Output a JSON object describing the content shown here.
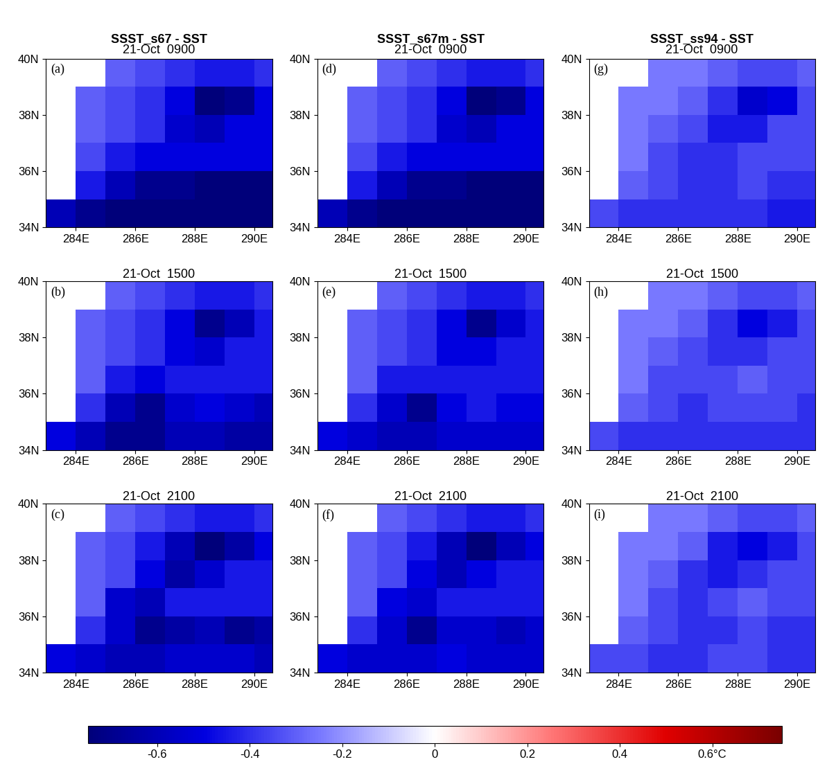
{
  "colorbar": {
    "range": [
      -0.75,
      0.75
    ],
    "ticks": [
      -0.6,
      -0.4,
      -0.2,
      0,
      0.2,
      0.4,
      {
        "value": 0.6,
        "label": "0.6°C"
      }
    ]
  },
  "chart_data": [
    {
      "type": "heatmap",
      "title": "SSST_s67 - SST",
      "subtitle": "21-Oct  0900",
      "panel": "(a)",
      "x": [
        283.5,
        284.5,
        285.5,
        286.5,
        287.5,
        288.5,
        289.5,
        290.5
      ],
      "y": [
        34.5,
        35.5,
        36.5,
        37.5,
        38.5,
        39.5
      ],
      "xlim": [
        283,
        290.6
      ],
      "ylim": [
        34,
        40
      ],
      "xticks": [
        {
          "value": 284,
          "label": "284E"
        },
        {
          "value": 286,
          "label": "286E"
        },
        {
          "value": 288,
          "label": "288E"
        },
        {
          "value": 290,
          "label": "290E"
        }
      ],
      "yticks": [
        {
          "value": 34,
          "label": "34N"
        },
        {
          "value": 36,
          "label": "36N"
        },
        {
          "value": 38,
          "label": "38N"
        },
        {
          "value": 40,
          "label": "40N"
        }
      ],
      "cells": [
        [
          -0.6,
          -0.7,
          -0.75,
          -0.75,
          -0.75,
          -0.75,
          -0.75,
          -0.75
        ],
        [
          null,
          -0.45,
          -0.6,
          -0.7,
          -0.7,
          -0.75,
          -0.75,
          -0.75
        ],
        [
          null,
          -0.35,
          -0.45,
          -0.5,
          -0.5,
          -0.5,
          -0.5,
          -0.5
        ],
        [
          null,
          -0.3,
          -0.35,
          -0.4,
          -0.55,
          -0.6,
          -0.5,
          -0.5
        ],
        [
          null,
          -0.3,
          -0.35,
          -0.4,
          -0.5,
          -0.75,
          -0.7,
          -0.5
        ],
        [
          null,
          null,
          -0.3,
          -0.35,
          -0.4,
          -0.45,
          -0.45,
          -0.4
        ]
      ]
    },
    {
      "type": "heatmap",
      "subtitle": "21-Oct  1500",
      "panel": "(b)",
      "x": [
        283.5,
        284.5,
        285.5,
        286.5,
        287.5,
        288.5,
        289.5,
        290.5
      ],
      "y": [
        34.5,
        35.5,
        36.5,
        37.5,
        38.5,
        39.5
      ],
      "xlim": [
        283,
        290.6
      ],
      "ylim": [
        34,
        40
      ],
      "xticks": [
        {
          "value": 284,
          "label": "284E"
        },
        {
          "value": 286,
          "label": "286E"
        },
        {
          "value": 288,
          "label": "288E"
        },
        {
          "value": 290,
          "label": "290E"
        }
      ],
      "yticks": [
        {
          "value": 34,
          "label": "34N"
        },
        {
          "value": 36,
          "label": "36N"
        },
        {
          "value": 38,
          "label": "38N"
        },
        {
          "value": 40,
          "label": "40N"
        }
      ],
      "cells": [
        [
          -0.5,
          -0.6,
          -0.7,
          -0.7,
          -0.6,
          -0.6,
          -0.65,
          -0.65
        ],
        [
          null,
          -0.4,
          -0.6,
          -0.7,
          -0.55,
          -0.5,
          -0.55,
          -0.6
        ],
        [
          null,
          -0.3,
          -0.45,
          -0.5,
          -0.45,
          -0.45,
          -0.45,
          -0.45
        ],
        [
          null,
          -0.3,
          -0.35,
          -0.4,
          -0.5,
          -0.55,
          -0.45,
          -0.45
        ],
        [
          null,
          -0.3,
          -0.35,
          -0.4,
          -0.5,
          -0.7,
          -0.6,
          -0.45
        ],
        [
          null,
          null,
          -0.3,
          -0.35,
          -0.4,
          -0.45,
          -0.45,
          -0.4
        ]
      ]
    },
    {
      "type": "heatmap",
      "subtitle": "21-Oct  2100",
      "panel": "(c)",
      "x": [
        283.5,
        284.5,
        285.5,
        286.5,
        287.5,
        288.5,
        289.5,
        290.5
      ],
      "y": [
        34.5,
        35.5,
        36.5,
        37.5,
        38.5,
        39.5
      ],
      "xlim": [
        283,
        290.6
      ],
      "ylim": [
        34,
        40
      ],
      "xticks": [
        {
          "value": 284,
          "label": "284E"
        },
        {
          "value": 286,
          "label": "286E"
        },
        {
          "value": 288,
          "label": "288E"
        },
        {
          "value": 290,
          "label": "290E"
        }
      ],
      "yticks": [
        {
          "value": 34,
          "label": "34N"
        },
        {
          "value": 36,
          "label": "36N"
        },
        {
          "value": 38,
          "label": "38N"
        },
        {
          "value": 40,
          "label": "40N"
        }
      ],
      "cells": [
        [
          -0.5,
          -0.55,
          -0.6,
          -0.6,
          -0.55,
          -0.55,
          -0.55,
          -0.6
        ],
        [
          null,
          -0.4,
          -0.55,
          -0.7,
          -0.65,
          -0.6,
          -0.7,
          -0.65
        ],
        [
          null,
          -0.3,
          -0.55,
          -0.6,
          -0.45,
          -0.45,
          -0.45,
          -0.45
        ],
        [
          null,
          -0.3,
          -0.35,
          -0.5,
          -0.65,
          -0.55,
          -0.45,
          -0.45
        ],
        [
          null,
          -0.3,
          -0.35,
          -0.45,
          -0.6,
          -0.75,
          -0.65,
          -0.5
        ],
        [
          null,
          null,
          -0.3,
          -0.35,
          -0.4,
          -0.45,
          -0.45,
          -0.4
        ]
      ]
    },
    {
      "type": "heatmap",
      "title": "SSST_s67m - SST",
      "subtitle": "21-Oct  0900",
      "panel": "(d)",
      "x": [
        283.5,
        284.5,
        285.5,
        286.5,
        287.5,
        288.5,
        289.5,
        290.5
      ],
      "y": [
        34.5,
        35.5,
        36.5,
        37.5,
        38.5,
        39.5
      ],
      "xlim": [
        283,
        290.6
      ],
      "ylim": [
        34,
        40
      ],
      "xticks": [
        {
          "value": 284,
          "label": "284E"
        },
        {
          "value": 286,
          "label": "286E"
        },
        {
          "value": 288,
          "label": "288E"
        },
        {
          "value": 290,
          "label": "290E"
        }
      ],
      "yticks": [
        {
          "value": 34,
          "label": "34N"
        },
        {
          "value": 36,
          "label": "36N"
        },
        {
          "value": 38,
          "label": "38N"
        },
        {
          "value": 40,
          "label": "40N"
        }
      ],
      "cells": [
        [
          -0.6,
          -0.7,
          -0.75,
          -0.75,
          -0.75,
          -0.75,
          -0.75,
          -0.75
        ],
        [
          null,
          -0.45,
          -0.6,
          -0.7,
          -0.7,
          -0.75,
          -0.75,
          -0.75
        ],
        [
          null,
          -0.35,
          -0.45,
          -0.5,
          -0.5,
          -0.5,
          -0.5,
          -0.5
        ],
        [
          null,
          -0.3,
          -0.35,
          -0.4,
          -0.55,
          -0.6,
          -0.5,
          -0.5
        ],
        [
          null,
          -0.3,
          -0.35,
          -0.4,
          -0.5,
          -0.75,
          -0.7,
          -0.5
        ],
        [
          null,
          null,
          -0.3,
          -0.35,
          -0.4,
          -0.45,
          -0.45,
          -0.4
        ]
      ]
    },
    {
      "type": "heatmap",
      "subtitle": "21-Oct  1500",
      "panel": "(e)",
      "x": [
        283.5,
        284.5,
        285.5,
        286.5,
        287.5,
        288.5,
        289.5,
        290.5
      ],
      "y": [
        34.5,
        35.5,
        36.5,
        37.5,
        38.5,
        39.5
      ],
      "xlim": [
        283,
        290.6
      ],
      "ylim": [
        34,
        40
      ],
      "xticks": [
        {
          "value": 284,
          "label": "284E"
        },
        {
          "value": 286,
          "label": "286E"
        },
        {
          "value": 288,
          "label": "288E"
        },
        {
          "value": 290,
          "label": "290E"
        }
      ],
      "yticks": [
        {
          "value": 34,
          "label": "34N"
        },
        {
          "value": 36,
          "label": "36N"
        },
        {
          "value": 38,
          "label": "38N"
        },
        {
          "value": 40,
          "label": "40N"
        }
      ],
      "cells": [
        [
          -0.5,
          -0.55,
          -0.6,
          -0.6,
          -0.55,
          -0.55,
          -0.55,
          -0.55
        ],
        [
          null,
          -0.4,
          -0.55,
          -0.7,
          -0.5,
          -0.45,
          -0.5,
          -0.5
        ],
        [
          null,
          -0.3,
          -0.45,
          -0.45,
          -0.45,
          -0.45,
          -0.45,
          -0.45
        ],
        [
          null,
          -0.3,
          -0.35,
          -0.4,
          -0.5,
          -0.5,
          -0.45,
          -0.45
        ],
        [
          null,
          -0.3,
          -0.35,
          -0.4,
          -0.5,
          -0.7,
          -0.55,
          -0.45
        ],
        [
          null,
          null,
          -0.3,
          -0.35,
          -0.4,
          -0.45,
          -0.45,
          -0.4
        ]
      ]
    },
    {
      "type": "heatmap",
      "subtitle": "21-Oct  2100",
      "panel": "(f)",
      "x": [
        283.5,
        284.5,
        285.5,
        286.5,
        287.5,
        288.5,
        289.5,
        290.5
      ],
      "y": [
        34.5,
        35.5,
        36.5,
        37.5,
        38.5,
        39.5
      ],
      "xlim": [
        283,
        290.6
      ],
      "ylim": [
        34,
        40
      ],
      "xticks": [
        {
          "value": 284,
          "label": "284E"
        },
        {
          "value": 286,
          "label": "286E"
        },
        {
          "value": 288,
          "label": "288E"
        },
        {
          "value": 290,
          "label": "290E"
        }
      ],
      "yticks": [
        {
          "value": 34,
          "label": "34N"
        },
        {
          "value": 36,
          "label": "36N"
        },
        {
          "value": 38,
          "label": "38N"
        },
        {
          "value": 40,
          "label": "40N"
        }
      ],
      "cells": [
        [
          -0.5,
          -0.55,
          -0.55,
          -0.55,
          -0.5,
          -0.55,
          -0.55,
          -0.55
        ],
        [
          null,
          -0.4,
          -0.55,
          -0.7,
          -0.55,
          -0.55,
          -0.6,
          -0.55
        ],
        [
          null,
          -0.3,
          -0.5,
          -0.55,
          -0.45,
          -0.45,
          -0.45,
          -0.45
        ],
        [
          null,
          -0.3,
          -0.35,
          -0.5,
          -0.6,
          -0.5,
          -0.45,
          -0.45
        ],
        [
          null,
          -0.3,
          -0.35,
          -0.45,
          -0.6,
          -0.75,
          -0.6,
          -0.5
        ],
        [
          null,
          null,
          -0.3,
          -0.35,
          -0.4,
          -0.45,
          -0.45,
          -0.4
        ]
      ]
    },
    {
      "type": "heatmap",
      "title": "SSST_ss94 - SST",
      "subtitle": "21-Oct  0900",
      "panel": "(g)",
      "x": [
        283.5,
        284.5,
        285.5,
        286.5,
        287.5,
        288.5,
        289.5,
        290.5
      ],
      "y": [
        34.5,
        35.5,
        36.5,
        37.5,
        38.5,
        39.5
      ],
      "xlim": [
        283,
        290.6
      ],
      "ylim": [
        34,
        40
      ],
      "xticks": [
        {
          "value": 284,
          "label": "284E"
        },
        {
          "value": 286,
          "label": "286E"
        },
        {
          "value": 288,
          "label": "288E"
        },
        {
          "value": 290,
          "label": "290E"
        }
      ],
      "yticks": [
        {
          "value": 34,
          "label": "34N"
        },
        {
          "value": 36,
          "label": "36N"
        },
        {
          "value": 38,
          "label": "38N"
        },
        {
          "value": 40,
          "label": "40N"
        }
      ],
      "cells": [
        [
          -0.35,
          -0.4,
          -0.4,
          -0.4,
          -0.4,
          -0.4,
          -0.45,
          -0.45
        ],
        [
          null,
          -0.3,
          -0.35,
          -0.4,
          -0.4,
          -0.35,
          -0.4,
          -0.4
        ],
        [
          null,
          -0.25,
          -0.35,
          -0.4,
          -0.4,
          -0.35,
          -0.35,
          -0.35
        ],
        [
          null,
          -0.25,
          -0.3,
          -0.35,
          -0.45,
          -0.45,
          -0.35,
          -0.35
        ],
        [
          null,
          -0.25,
          -0.25,
          -0.3,
          -0.4,
          -0.55,
          -0.5,
          -0.35
        ],
        [
          null,
          null,
          -0.25,
          -0.25,
          -0.3,
          -0.35,
          -0.35,
          -0.3
        ]
      ]
    },
    {
      "type": "heatmap",
      "subtitle": "21-Oct  1500",
      "panel": "(h)",
      "x": [
        283.5,
        284.5,
        285.5,
        286.5,
        287.5,
        288.5,
        289.5,
        290.5
      ],
      "y": [
        34.5,
        35.5,
        36.5,
        37.5,
        38.5,
        39.5
      ],
      "xlim": [
        283,
        290.6
      ],
      "ylim": [
        34,
        40
      ],
      "xticks": [
        {
          "value": 284,
          "label": "284E"
        },
        {
          "value": 286,
          "label": "286E"
        },
        {
          "value": 288,
          "label": "288E"
        },
        {
          "value": 290,
          "label": "290E"
        }
      ],
      "yticks": [
        {
          "value": 34,
          "label": "34N"
        },
        {
          "value": 36,
          "label": "36N"
        },
        {
          "value": 38,
          "label": "38N"
        },
        {
          "value": 40,
          "label": "40N"
        }
      ],
      "cells": [
        [
          -0.35,
          -0.4,
          -0.4,
          -0.4,
          -0.4,
          -0.4,
          -0.4,
          -0.4
        ],
        [
          null,
          -0.3,
          -0.35,
          -0.4,
          -0.35,
          -0.35,
          -0.35,
          -0.4
        ],
        [
          null,
          -0.25,
          -0.35,
          -0.35,
          -0.35,
          -0.3,
          -0.35,
          -0.35
        ],
        [
          null,
          -0.25,
          -0.3,
          -0.35,
          -0.4,
          -0.4,
          -0.35,
          -0.35
        ],
        [
          null,
          -0.25,
          -0.25,
          -0.3,
          -0.4,
          -0.5,
          -0.45,
          -0.35
        ],
        [
          null,
          null,
          -0.25,
          -0.25,
          -0.3,
          -0.35,
          -0.35,
          -0.3
        ]
      ]
    },
    {
      "type": "heatmap",
      "subtitle": "21-Oct  2100",
      "panel": "(i)",
      "x": [
        283.5,
        284.5,
        285.5,
        286.5,
        287.5,
        288.5,
        289.5,
        290.5
      ],
      "y": [
        34.5,
        35.5,
        36.5,
        37.5,
        38.5,
        39.5
      ],
      "xlim": [
        283,
        290.6
      ],
      "ylim": [
        34,
        40
      ],
      "xticks": [
        {
          "value": 284,
          "label": "284E"
        },
        {
          "value": 286,
          "label": "286E"
        },
        {
          "value": 288,
          "label": "288E"
        },
        {
          "value": 290,
          "label": "290E"
        }
      ],
      "yticks": [
        {
          "value": 34,
          "label": "34N"
        },
        {
          "value": 36,
          "label": "36N"
        },
        {
          "value": 38,
          "label": "38N"
        },
        {
          "value": 40,
          "label": "40N"
        }
      ],
      "cells": [
        [
          -0.35,
          -0.35,
          -0.4,
          -0.4,
          -0.35,
          -0.35,
          -0.4,
          -0.4
        ],
        [
          null,
          -0.3,
          -0.35,
          -0.4,
          -0.4,
          -0.35,
          -0.4,
          -0.4
        ],
        [
          null,
          -0.25,
          -0.35,
          -0.4,
          -0.35,
          -0.3,
          -0.35,
          -0.35
        ],
        [
          null,
          -0.25,
          -0.3,
          -0.4,
          -0.45,
          -0.4,
          -0.35,
          -0.35
        ],
        [
          null,
          -0.25,
          -0.25,
          -0.3,
          -0.45,
          -0.5,
          -0.45,
          -0.35
        ],
        [
          null,
          null,
          -0.25,
          -0.25,
          -0.3,
          -0.35,
          -0.35,
          -0.3
        ]
      ]
    }
  ]
}
